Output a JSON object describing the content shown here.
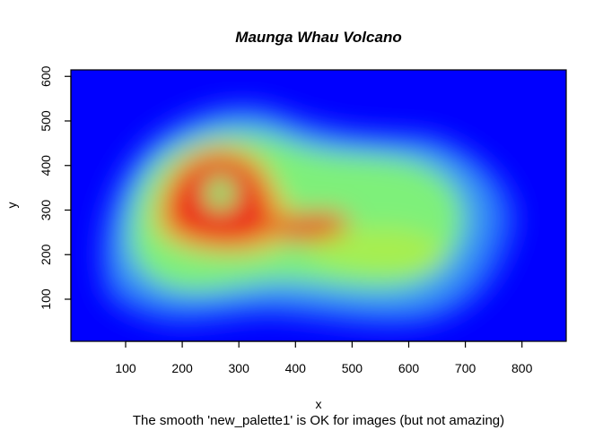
{
  "chart_data": {
    "type": "heatmap",
    "title": "Maunga Whau Volcano",
    "xlabel": "x",
    "ylabel": "y",
    "subtitle": "The smooth 'new_palette1' is OK for images (but not amazing)",
    "xlim": [
      0,
      880
    ],
    "ylim": [
      0,
      620
    ],
    "xticks": [
      100,
      200,
      300,
      400,
      500,
      600,
      700,
      800
    ],
    "yticks": [
      100,
      200,
      300,
      400,
      500,
      600
    ],
    "grid": false,
    "legend": "none",
    "palette": [
      "#0000ff",
      "#1e5aff",
      "#3c9cf0",
      "#4ad2c4",
      "#7ef07a",
      "#a8ee4e",
      "#e0c83a",
      "#e85020",
      "#ee1c14"
    ],
    "value_range": [
      94,
      195
    ],
    "colorization": "low values blue, mid values green, high values red",
    "features": [
      {
        "kind": "ring-summit",
        "x": 265,
        "y": 340,
        "value": 190,
        "note": "crater rim; low center near (265, 340)"
      },
      {
        "kind": "side-peak",
        "x": 385,
        "y": 255,
        "value": 175
      },
      {
        "kind": "east-shoulder",
        "x": 600,
        "y": 215,
        "value": 150
      }
    ]
  }
}
